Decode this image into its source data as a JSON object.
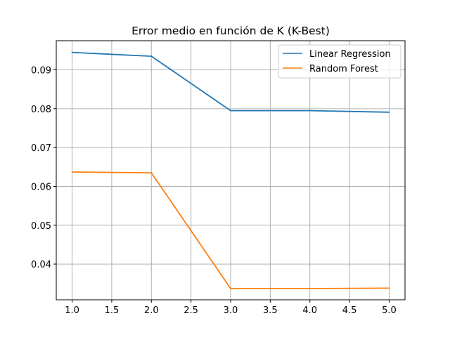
{
  "chart_data": {
    "type": "line",
    "title": "Error medio en función de K (K-Best)",
    "xlabel": "",
    "ylabel": "",
    "x": [
      1.0,
      2.0,
      3.0,
      4.0,
      5.0
    ],
    "xlim": [
      0.8,
      5.2
    ],
    "ylim": [
      0.0308,
      0.0975
    ],
    "xticks": [
      "1.0",
      "1.5",
      "2.0",
      "2.5",
      "3.0",
      "3.5",
      "4.0",
      "4.5",
      "5.0"
    ],
    "yticks": [
      "0.04",
      "0.05",
      "0.06",
      "0.07",
      "0.08",
      "0.09"
    ],
    "grid": true,
    "legend_position": "top-right",
    "series": [
      {
        "name": "Linear Regression",
        "color": "#1f77b4",
        "values": [
          0.0945,
          0.0935,
          0.0795,
          0.0795,
          0.0791
        ]
      },
      {
        "name": "Random Forest",
        "color": "#ff7f0e",
        "values": [
          0.0637,
          0.0635,
          0.0337,
          0.0337,
          0.0338
        ]
      }
    ]
  }
}
